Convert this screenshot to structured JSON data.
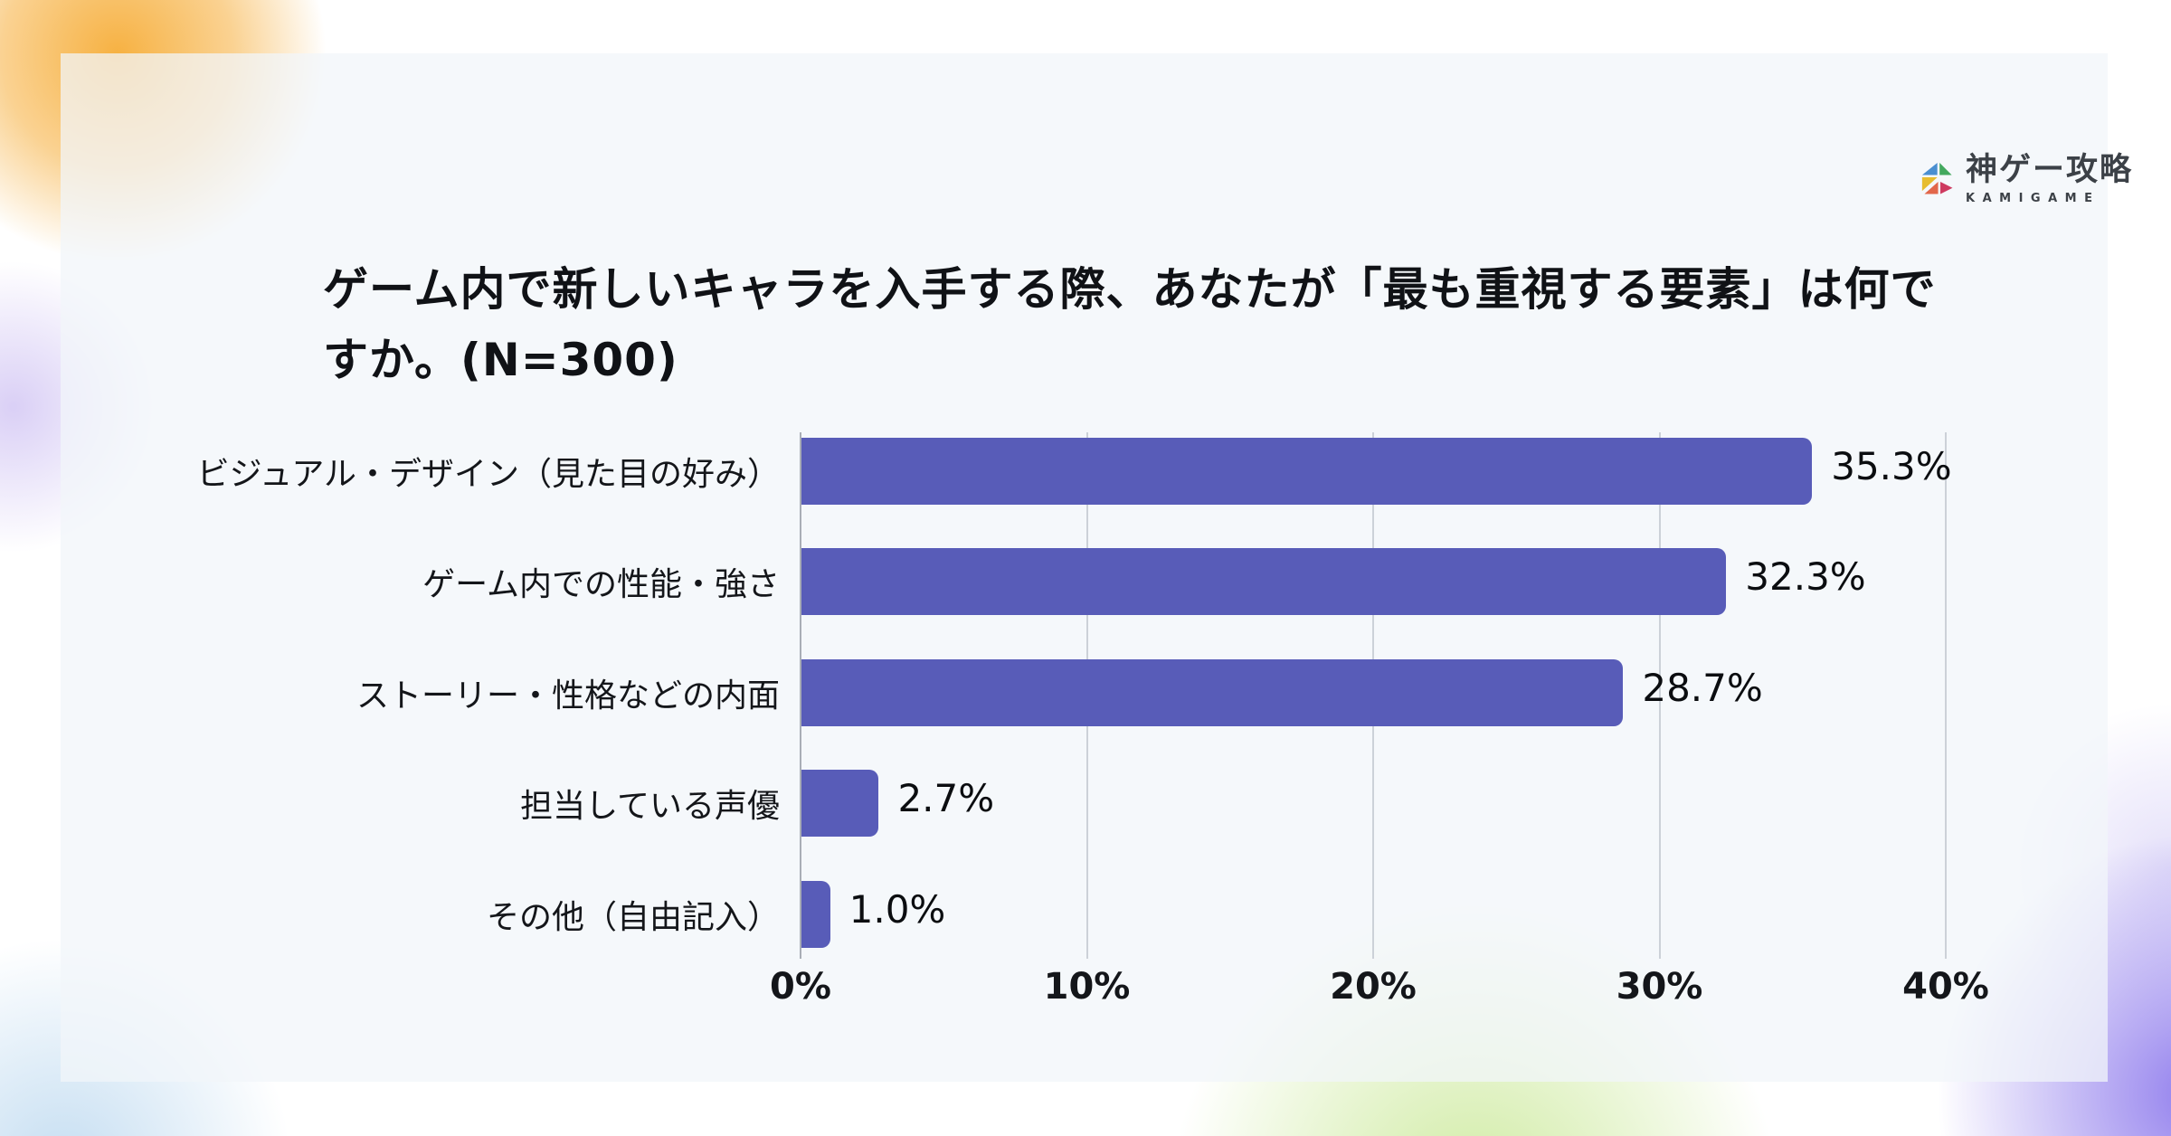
{
  "logo": {
    "name": "神ゲー攻略",
    "subtitle": "KAMIGAME",
    "mark_colors": {
      "blue": "#4a8fd1",
      "green": "#43a95e",
      "yellow": "#e7bd2f",
      "orange": "#e2674b",
      "pink": "#ce3a60"
    }
  },
  "background_colors": {
    "blob_orange": "#f6ad38",
    "blob_green": "#c6e790",
    "blob_purple": "#8c78ec",
    "blob_lavender": "#bba8ee",
    "blob_blue": "#add0ec",
    "card": "#f1f6fa"
  },
  "chart_data": {
    "type": "bar",
    "orientation": "horizontal",
    "title": "ゲーム内で新しいキャラを入手する際、あなたが「最も重視する要素」は何ですか。(N=300)",
    "categories": [
      "ビジュアル・デザイン（見た目の好み）",
      "ゲーム内での性能・強さ",
      "ストーリー・性格などの内面",
      "担当している声優",
      "その他（自由記入）"
    ],
    "values": [
      35.3,
      32.3,
      28.7,
      2.7,
      1.0
    ],
    "value_labels": [
      "35.3%",
      "32.3%",
      "28.7%",
      "2.7%",
      "1.0%"
    ],
    "x_ticks": [
      "0%",
      "10%",
      "20%",
      "30%",
      "40%"
    ],
    "xlim": [
      0,
      40
    ],
    "xlabel": "",
    "ylabel": "",
    "bar_color": "#585cb8",
    "grid": true,
    "legend": "none"
  }
}
